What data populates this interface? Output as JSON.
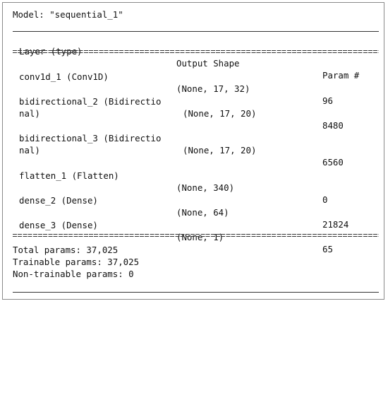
{
  "model_title": "Model: \"sequential_1\"",
  "header": {
    "layer": "Layer (type)",
    "output_shape": "Output Shape",
    "params": "Param #"
  },
  "layers": [
    {
      "layer_line1": "conv1d_1 (Conv1D)",
      "layer_line2": "",
      "output_shape": "(None, 17, 32)",
      "params": "96"
    },
    {
      "layer_line1": "bidirectional_2 (Bidirectio",
      "layer_line2": "nal)",
      "output_shape": "(None, 17, 20)",
      "params": "8480"
    },
    {
      "layer_line1": "bidirectional_3 (Bidirectio",
      "layer_line2": "nal)",
      "output_shape": "(None, 17, 20)",
      "params": "6560"
    },
    {
      "layer_line1": "flatten_1 (Flatten)",
      "layer_line2": "",
      "output_shape": "(None, 340)",
      "params": "0"
    },
    {
      "layer_line1": "dense_2 (Dense)",
      "layer_line2": "",
      "output_shape": "(None, 64)",
      "params": "21824"
    },
    {
      "layer_line1": "dense_3 (Dense)",
      "layer_line2": "",
      "output_shape": "(None, 1)",
      "params": "65"
    }
  ],
  "summary": {
    "total": "Total params: 37,025",
    "trainable": "Trainable params: 37,025",
    "non_trainable": "Non-trainable params: 0"
  }
}
